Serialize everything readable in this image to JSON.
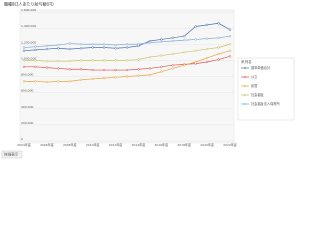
{
  "chart_data": {
    "type": "line",
    "title": "職種別1人あたり給与額(円)",
    "footer_button": "詳細表示",
    "legend_title": "系列名",
    "legend": "right",
    "grid": true,
    "categories": [
      "2004年度",
      "2005年度",
      "2006年度",
      "2007年度",
      "2008年度",
      "2009年度",
      "2010年度",
      "2011年度",
      "2012年度",
      "2013年度",
      "2014年度",
      "2015年度",
      "2016年度",
      "2017年度",
      "2018年度",
      "2019年度",
      "2020年度",
      "2021年度",
      "2022年度"
    ],
    "ylim": [
      0,
      1600000
    ],
    "yticks": [
      {
        "value": 0,
        "label": "0"
      },
      {
        "value": 200000,
        "label": "200,000"
      },
      {
        "value": 400000,
        "label": "400,000"
      },
      {
        "value": 600000,
        "label": "600,000"
      },
      {
        "value": 800000,
        "label": "800,000"
      },
      {
        "value": 1000000,
        "label": "1,000,000"
      },
      {
        "value": 1200000,
        "label": "1,200,000"
      },
      {
        "value": 1400000,
        "label": "1,400,000"
      },
      {
        "value": 1600000,
        "label": "1,600,000"
      }
    ],
    "series": [
      {
        "name": "基準単価合計",
        "color": "#4a6fb5",
        "values": [
          1120000,
          1130000,
          1140000,
          1150000,
          1140000,
          1150000,
          1160000,
          1160000,
          1150000,
          1160000,
          1180000,
          1240000,
          1260000,
          1280000,
          1300000,
          1420000,
          1440000,
          1460000,
          1380000
        ]
      },
      {
        "name": "公立",
        "color": "#d9534f",
        "values": [
          920000,
          920000,
          910000,
          900000,
          890000,
          890000,
          880000,
          880000,
          880000,
          880000,
          890000,
          900000,
          920000,
          940000,
          950000,
          960000,
          980000,
          1010000,
          1050000
        ]
      },
      {
        "name": "民間",
        "color": "#e8a23c",
        "values": [
          740000,
          740000,
          730000,
          740000,
          740000,
          760000,
          770000,
          780000,
          790000,
          800000,
          810000,
          820000,
          860000,
          900000,
          940000,
          980000,
          1030000,
          1080000,
          1120000
        ]
      },
      {
        "name": "社会福祉",
        "color": "#c9c25a",
        "values": [
          1000000,
          1000000,
          990000,
          990000,
          990000,
          1000000,
          1000000,
          1000000,
          1000000,
          1000000,
          1010000,
          1040000,
          1060000,
          1080000,
          1100000,
          1120000,
          1140000,
          1160000,
          1200000
        ]
      },
      {
        "name": "社会福祉法人保育所",
        "color": "#7da7d9",
        "values": [
          1160000,
          1170000,
          1180000,
          1190000,
          1210000,
          1200000,
          1200000,
          1200000,
          1190000,
          1200000,
          1200000,
          1220000,
          1230000,
          1240000,
          1250000,
          1260000,
          1270000,
          1280000,
          1300000
        ]
      }
    ]
  }
}
